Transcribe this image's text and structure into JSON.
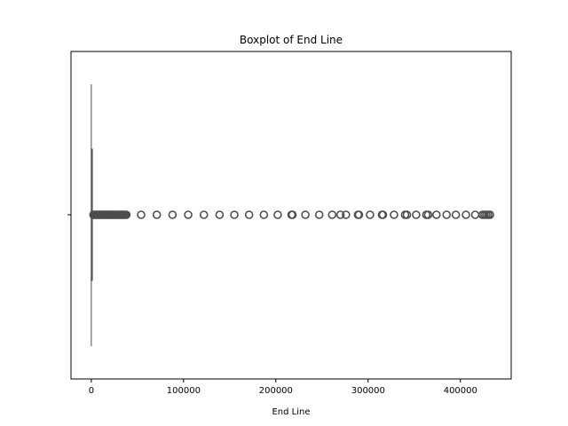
{
  "chart_data": {
    "type": "boxplot",
    "title": "Boxplot of End Line",
    "xlabel": "End Line",
    "ylabel": "",
    "xlim": [
      -22000,
      455000
    ],
    "xticks": [
      0,
      100000,
      200000,
      300000,
      400000
    ],
    "xtick_labels": [
      "0",
      "100000",
      "200000",
      "300000",
      "400000"
    ],
    "orientation": "horizontal",
    "grid": false,
    "box": {
      "q1": 0,
      "median": 200,
      "q3": 1000,
      "whisker_low": 0,
      "whisker_high": 2300
    },
    "outliers": [
      2300,
      3000,
      4000,
      5000,
      6000,
      7000,
      8000,
      9000,
      10000,
      11000,
      12000,
      13000,
      14000,
      15000,
      16000,
      17000,
      18000,
      19000,
      20000,
      21000,
      22000,
      23000,
      24000,
      25000,
      26000,
      27000,
      28000,
      29000,
      30000,
      31000,
      32000,
      33000,
      34000,
      35000,
      36000,
      37000,
      38000,
      54000,
      71000,
      88000,
      105000,
      122000,
      139000,
      155000,
      171000,
      187000,
      202000,
      217000,
      218000,
      232000,
      247000,
      261000,
      270000,
      276000,
      289000,
      290000,
      302000,
      315000,
      316000,
      328000,
      340000,
      342000,
      352000,
      363000,
      365000,
      374000,
      385000,
      395000,
      406000,
      416000,
      424000,
      426000,
      428000,
      430000,
      432000
    ],
    "colors": {
      "box_line": "#4d4d4d",
      "outlier_edge": "#4d4d4d",
      "frame": "#000000"
    }
  }
}
